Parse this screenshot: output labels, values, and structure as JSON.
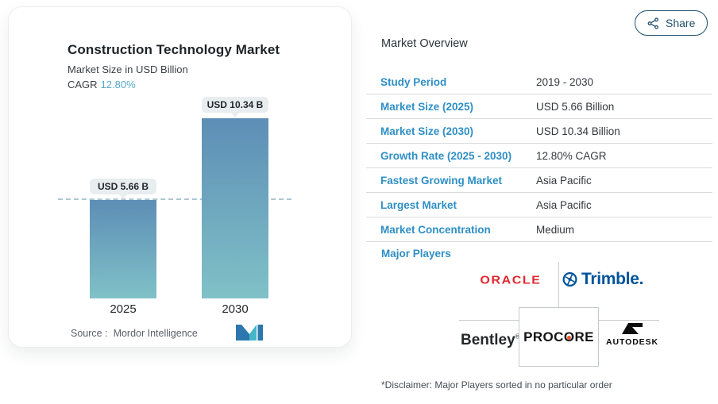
{
  "chart_card": {
    "title": "Construction Technology Market",
    "subtitle": "Market Size in USD Billion",
    "cagr_label": "CAGR",
    "cagr_value": "12.80%",
    "source_label": "Source :",
    "source_value": "Mordor Intelligence"
  },
  "chart_data": {
    "type": "bar",
    "title": "Construction Technology Market",
    "ylabel": "Market Size in USD Billion",
    "cagr_percent": 12.8,
    "categories": [
      "2025",
      "2030"
    ],
    "values": [
      5.66,
      10.34
    ],
    "bar_labels": [
      "USD 5.66 B",
      "USD 10.34 B"
    ],
    "dashed_reference_value": 5.66,
    "ylim": [
      0,
      10.34
    ],
    "grid": "off",
    "legend": "none",
    "source": "Mordor Intelligence"
  },
  "share": {
    "label": "Share"
  },
  "overview": {
    "heading": "Market Overview",
    "rows": [
      {
        "label": "Study Period",
        "value": "2019 - 2030"
      },
      {
        "label": "Market Size (2025)",
        "value": "USD 5.66 Billion"
      },
      {
        "label": "Market Size (2030)",
        "value": "USD 10.34 Billion"
      },
      {
        "label": "Growth Rate (2025 - 2030)",
        "value": "12.80% CAGR"
      },
      {
        "label": "Fastest Growing Market",
        "value": "Asia Pacific"
      },
      {
        "label": "Largest Market",
        "value": "Asia Pacific"
      },
      {
        "label": "Market Concentration",
        "value": "Medium"
      }
    ],
    "major_players_label": "Major Players",
    "players": {
      "oracle": "ORACLE",
      "trimble": "Trimble.",
      "bentley": "Bentley",
      "bentley_reg": "®",
      "procore_pre": "PROC",
      "procore_o": "O",
      "procore_post": "RE",
      "autodesk": "AUTODESK"
    },
    "disclaimer": "*Disclaimer: Major Players sorted in no particular order"
  },
  "icons": {
    "share-icon": "share-nodes",
    "trimble-mark-icon": "circled-sextant",
    "autodesk-mark-icon": "stylized-A-flag",
    "mordor-intelligence-logo": "two-tone-M"
  },
  "colors": {
    "accent-blue": "#2e8fc5",
    "share-blue": "#224f6e",
    "cagr-teal": "#55a9c8",
    "bar-top": "#5d8eb6",
    "bar-bottom": "#80c1c7",
    "dash": "#aac7d3",
    "badge-bg": "#e8edf0",
    "separator": "#d8dcdf",
    "oracle-red": "#e0282f",
    "trimble-blue": "#00539b",
    "procore-orange": "#f2572d",
    "mordor-blue": "#2c77ae",
    "mordor-teal": "#45b7c9"
  }
}
